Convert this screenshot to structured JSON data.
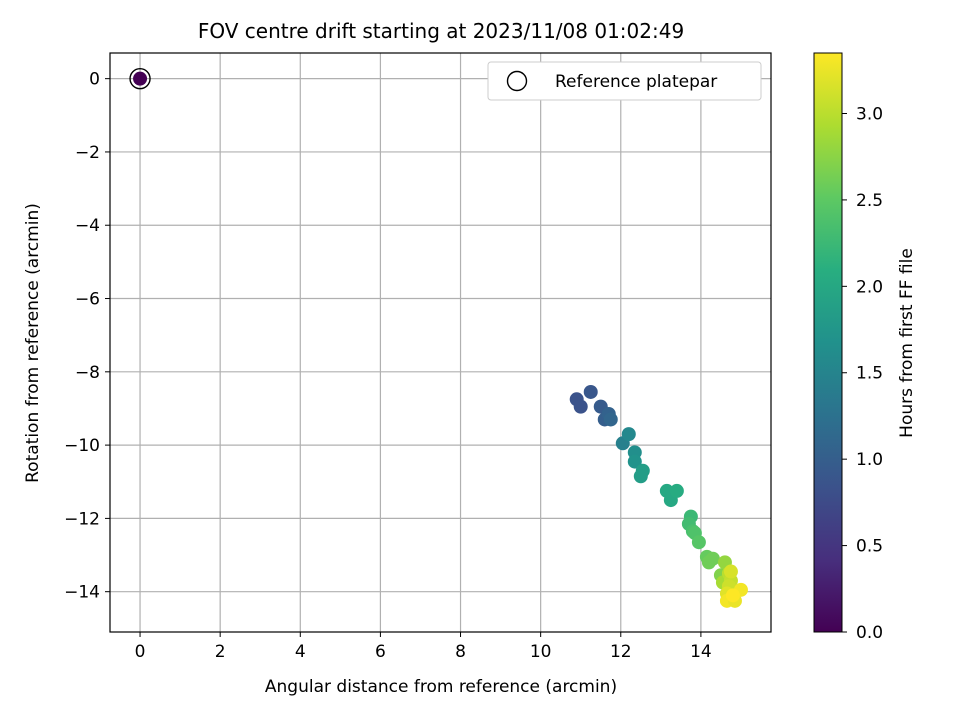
{
  "chart_data": {
    "type": "scatter",
    "title": "FOV centre drift starting at 2023/11/08 01:02:49",
    "xlabel": "Angular distance from reference (arcmin)",
    "ylabel": "Rotation from reference (arcmin)",
    "xlim": [
      -0.75,
      15.75
    ],
    "ylim": [
      -15.1,
      0.7
    ],
    "xticks": [
      0,
      2,
      4,
      6,
      8,
      10,
      12,
      14
    ],
    "xtick_labels": [
      "0",
      "2",
      "4",
      "6",
      "8",
      "10",
      "12",
      "14"
    ],
    "yticks": [
      0,
      -2,
      -4,
      -6,
      -8,
      -10,
      -12,
      -14
    ],
    "ytick_labels": [
      "0",
      "−2",
      "−4",
      "−6",
      "−8",
      "−10",
      "−12",
      "−14"
    ],
    "grid": true,
    "legend": {
      "placement": "top-right",
      "entries": [
        "Reference platepar"
      ]
    },
    "colorbar": {
      "label": "Hours from first FF file",
      "range": [
        0.0,
        3.35
      ],
      "ticks": [
        0.0,
        0.5,
        1.0,
        1.5,
        2.0,
        2.5,
        3.0
      ],
      "tick_labels": [
        "0.0",
        "0.5",
        "1.0",
        "1.5",
        "2.0",
        "2.5",
        "3.0"
      ],
      "colormap": "viridis"
    },
    "reference_point": {
      "x": 0,
      "y": 0,
      "hours": 0.0
    },
    "points": [
      {
        "x": 10.9,
        "y": -8.75,
        "h": 0.85
      },
      {
        "x": 11.0,
        "y": -8.95,
        "h": 0.85
      },
      {
        "x": 11.25,
        "y": -8.55,
        "h": 0.9
      },
      {
        "x": 11.5,
        "y": -8.95,
        "h": 0.95
      },
      {
        "x": 11.6,
        "y": -9.3,
        "h": 1.0
      },
      {
        "x": 11.7,
        "y": -9.15,
        "h": 1.05
      },
      {
        "x": 11.75,
        "y": -9.3,
        "h": 1.1
      },
      {
        "x": 12.05,
        "y": -9.95,
        "h": 1.45
      },
      {
        "x": 12.2,
        "y": -9.7,
        "h": 1.55
      },
      {
        "x": 12.35,
        "y": -10.2,
        "h": 1.65
      },
      {
        "x": 12.35,
        "y": -10.45,
        "h": 1.7
      },
      {
        "x": 12.55,
        "y": -10.7,
        "h": 1.85
      },
      {
        "x": 12.5,
        "y": -10.85,
        "h": 1.85
      },
      {
        "x": 13.15,
        "y": -11.25,
        "h": 2.0
      },
      {
        "x": 13.25,
        "y": -11.5,
        "h": 2.0
      },
      {
        "x": 13.4,
        "y": -11.25,
        "h": 2.05
      },
      {
        "x": 13.75,
        "y": -11.95,
        "h": 2.25
      },
      {
        "x": 13.7,
        "y": -12.15,
        "h": 2.3
      },
      {
        "x": 13.8,
        "y": -12.35,
        "h": 2.35
      },
      {
        "x": 13.85,
        "y": -12.4,
        "h": 2.4
      },
      {
        "x": 13.95,
        "y": -12.65,
        "h": 2.45
      },
      {
        "x": 14.15,
        "y": -13.05,
        "h": 2.55
      },
      {
        "x": 14.2,
        "y": -13.2,
        "h": 2.6
      },
      {
        "x": 14.3,
        "y": -13.1,
        "h": 2.6
      },
      {
        "x": 14.5,
        "y": -13.55,
        "h": 2.7
      },
      {
        "x": 14.6,
        "y": -13.2,
        "h": 2.8
      },
      {
        "x": 14.55,
        "y": -13.75,
        "h": 2.9
      },
      {
        "x": 14.7,
        "y": -13.5,
        "h": 3.0
      },
      {
        "x": 14.75,
        "y": -13.7,
        "h": 3.05
      },
      {
        "x": 14.7,
        "y": -13.85,
        "h": 3.1
      },
      {
        "x": 14.75,
        "y": -13.45,
        "h": 3.15
      },
      {
        "x": 14.65,
        "y": -14.05,
        "h": 3.2
      },
      {
        "x": 14.65,
        "y": -14.25,
        "h": 3.3
      },
      {
        "x": 14.85,
        "y": -14.25,
        "h": 3.25
      },
      {
        "x": 15.0,
        "y": -13.95,
        "h": 3.3
      },
      {
        "x": 14.8,
        "y": -14.1,
        "h": 3.35
      }
    ]
  }
}
